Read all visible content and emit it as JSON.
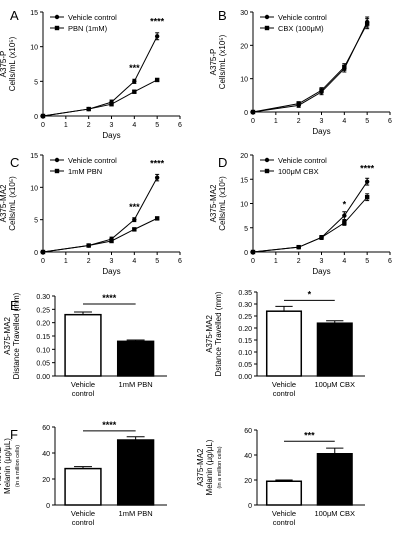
{
  "chart_data": [
    {
      "id": "A",
      "type": "line",
      "panel_letter": "A",
      "xlabel": "Days",
      "ylabel_lines": [
        "A375-P",
        "Cells/mL (x10⁵)"
      ],
      "xlim": [
        0,
        6
      ],
      "ylim": [
        0,
        15
      ],
      "xticks": [
        "0",
        "1",
        "2",
        "3",
        "4",
        "5",
        "6"
      ],
      "yticks": [
        "0",
        "5",
        "10",
        "15"
      ],
      "legend_position": "top-left",
      "series": [
        {
          "name": "Vehicle control",
          "marker": "circle",
          "x": [
            0,
            2,
            3,
            4,
            5
          ],
          "y": [
            0,
            1,
            2,
            5,
            11.5
          ],
          "err": [
            0,
            0.2,
            0.3,
            0.3,
            0.5
          ]
        },
        {
          "name": "PBN (1mM)",
          "marker": "square",
          "x": [
            0,
            2,
            3,
            4,
            5
          ],
          "y": [
            0,
            1,
            1.7,
            3.5,
            5.2
          ],
          "err": [
            0,
            0.2,
            0.2,
            0.2,
            0.2
          ]
        }
      ],
      "annotations": [
        {
          "x": 4,
          "y": 6.5,
          "text": "***"
        },
        {
          "x": 5,
          "y": 13.2,
          "text": "****"
        }
      ]
    },
    {
      "id": "B",
      "type": "line",
      "panel_letter": "B",
      "xlabel": "Days",
      "ylabel_lines": [
        "A375-P",
        "Cells/mL (x10⁵)"
      ],
      "xlim": [
        0,
        6
      ],
      "ylim": [
        0,
        30
      ],
      "xticks": [
        "0",
        "1",
        "2",
        "3",
        "4",
        "5",
        "6"
      ],
      "yticks": [
        "0",
        "10",
        "20",
        "30"
      ],
      "legend_position": "top-left",
      "series": [
        {
          "name": "Vehicle control",
          "marker": "circle",
          "x": [
            0,
            2,
            3,
            4,
            5
          ],
          "y": [
            0,
            2,
            6,
            13,
            27
          ],
          "err": [
            0,
            0.6,
            0.8,
            1.0,
            1.5
          ]
        },
        {
          "name": "CBX (100μM)",
          "marker": "square",
          "x": [
            0,
            2,
            3,
            4,
            5
          ],
          "y": [
            0,
            2.5,
            6.5,
            13.5,
            26.5
          ],
          "err": [
            0,
            0.6,
            0.8,
            1.0,
            1.5
          ]
        }
      ],
      "annotations": []
    },
    {
      "id": "C",
      "type": "line",
      "panel_letter": "C",
      "xlabel": "Days",
      "ylabel_lines": [
        "A375-MA2",
        "Cells/mL (x10⁵)"
      ],
      "xlim": [
        0,
        6
      ],
      "ylim": [
        0,
        15
      ],
      "xticks": [
        "0",
        "1",
        "2",
        "3",
        "4",
        "5",
        "6"
      ],
      "yticks": [
        "0",
        "5",
        "10",
        "15"
      ],
      "legend_position": "top-left",
      "series": [
        {
          "name": "Vehicle control",
          "marker": "circle",
          "x": [
            0,
            2,
            3,
            4,
            5
          ],
          "y": [
            0,
            1,
            2,
            5,
            11.5
          ],
          "err": [
            0,
            0.2,
            0.3,
            0.3,
            0.5
          ]
        },
        {
          "name": "1mM PBN",
          "marker": "square",
          "x": [
            0,
            2,
            3,
            4,
            5
          ],
          "y": [
            0,
            1,
            1.7,
            3.5,
            5.2
          ],
          "err": [
            0,
            0.2,
            0.2,
            0.2,
            0.2
          ]
        }
      ],
      "annotations": [
        {
          "x": 4,
          "y": 6.5,
          "text": "***"
        },
        {
          "x": 5,
          "y": 13.2,
          "text": "****"
        }
      ]
    },
    {
      "id": "D",
      "type": "line",
      "panel_letter": "D",
      "xlabel": "Days",
      "ylabel_lines": [
        "A375-MA2",
        "Cells/mL (x10⁵)"
      ],
      "xlim": [
        0,
        6
      ],
      "ylim": [
        0,
        20
      ],
      "xticks": [
        "0",
        "1",
        "2",
        "3",
        "4",
        "5",
        "6"
      ],
      "yticks": [
        "0",
        "5",
        "10",
        "15",
        "20"
      ],
      "legend_position": "top-left",
      "series": [
        {
          "name": "Vehicle control",
          "marker": "circle",
          "x": [
            0,
            2,
            3,
            4,
            5
          ],
          "y": [
            0,
            1,
            3,
            7.5,
            14.5
          ],
          "err": [
            0,
            0.2,
            0.4,
            0.8,
            0.7
          ]
        },
        {
          "name": "100μM CBX",
          "marker": "square",
          "x": [
            0,
            2,
            3,
            4,
            5
          ],
          "y": [
            0,
            1,
            3,
            6,
            11.3
          ],
          "err": [
            0,
            0.2,
            0.4,
            0.5,
            0.7
          ]
        }
      ],
      "annotations": [
        {
          "x": 4,
          "y": 9.2,
          "text": "*"
        },
        {
          "x": 5,
          "y": 16.6,
          "text": "****"
        }
      ]
    },
    {
      "id": "E1",
      "type": "bar",
      "panel_letter": "E",
      "ylabel_lines": [
        "A375-MA2",
        "Distance Travelled (mm)"
      ],
      "ylim": [
        0,
        0.3
      ],
      "yticks": [
        "0.00",
        "0.05",
        "0.10",
        "0.15",
        "0.20",
        "0.25",
        "0.30"
      ],
      "categories": [
        [
          "Vehicle",
          "control"
        ],
        [
          "1mM PBN"
        ]
      ],
      "values": [
        0.23,
        0.13
      ],
      "err": [
        0.01,
        0.005
      ],
      "fills": [
        "#ffffff",
        "#000000"
      ],
      "sig": {
        "text": "****",
        "y": 0.27
      }
    },
    {
      "id": "E2",
      "type": "bar",
      "panel_letter": "",
      "ylabel_lines": [
        "A375-MA2",
        "Dstance Travelled (mm)"
      ],
      "ylim": [
        0,
        0.35
      ],
      "yticks": [
        "0.00",
        "0.05",
        "0.10",
        "0.15",
        "0.20",
        "0.25",
        "0.30",
        "0.35"
      ],
      "categories": [
        [
          "Vehicle",
          "control"
        ],
        [
          "100μM CBX"
        ]
      ],
      "values": [
        0.27,
        0.22
      ],
      "err": [
        0.02,
        0.01
      ],
      "fills": [
        "#ffffff",
        "#000000"
      ],
      "sig": {
        "text": "*",
        "y": 0.315
      }
    },
    {
      "id": "F1",
      "type": "bar",
      "panel_letter": "F",
      "ylabel_lines": [
        "A375-MA2",
        "Melanin (µg/µL)",
        "(in a million cells)"
      ],
      "ylim": [
        0,
        60
      ],
      "yticks": [
        "0",
        "20",
        "40",
        "60"
      ],
      "categories": [
        [
          "Vehicle",
          "control"
        ],
        [
          "1mM PBN"
        ]
      ],
      "values": [
        28,
        50
      ],
      "err": [
        1.5,
        2.5
      ],
      "fills": [
        "#ffffff",
        "#000000"
      ],
      "sig": {
        "text": "****",
        "y": 57
      }
    },
    {
      "id": "F2",
      "type": "bar",
      "panel_letter": "",
      "ylabel_lines": [
        "A375-MA2",
        "Melanin (µg/µL)",
        "(in a million cells)"
      ],
      "ylim": [
        0,
        60
      ],
      "yticks": [
        "0",
        "20",
        "40",
        "60"
      ],
      "categories": [
        [
          "Vehicle",
          "control"
        ],
        [
          "100μM CBX"
        ]
      ],
      "values": [
        19,
        41
      ],
      "err": [
        1,
        4.5
      ],
      "fills": [
        "#ffffff",
        "#000000"
      ],
      "sig": {
        "text": "***",
        "y": 51
      }
    }
  ]
}
